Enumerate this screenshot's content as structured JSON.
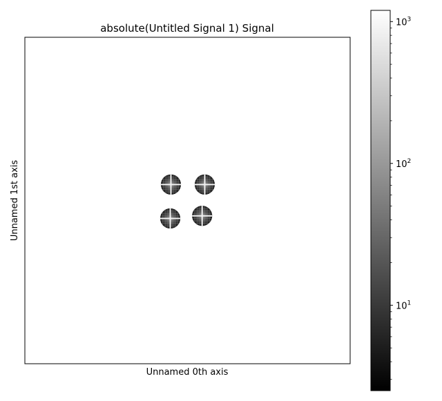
{
  "chart_data": {
    "type": "heatmap",
    "title": "absolute(Untitled Signal 1) Signal",
    "xlabel": "Unnamed 0th axis",
    "ylabel": "Unnamed 1st axis",
    "background_value": 0,
    "colormap": "gray",
    "colorbar": {
      "scale": "log",
      "range": [
        2.5,
        1200
      ],
      "major_ticks": [
        {
          "value": 1000,
          "base": "10",
          "exp": "3"
        },
        {
          "value": 100,
          "base": "10",
          "exp": "2"
        },
        {
          "value": 10,
          "base": "10",
          "exp": "1"
        }
      ],
      "minor_ticks": [
        3,
        4,
        5,
        6,
        7,
        8,
        9,
        20,
        30,
        40,
        50,
        60,
        70,
        80,
        90,
        200,
        300,
        400,
        500,
        600,
        700,
        800,
        900
      ]
    },
    "blobs": [
      {
        "label": "upper-left",
        "cx": 0.449,
        "cy": 0.451,
        "peak": 1000
      },
      {
        "label": "upper-right",
        "cx": 0.553,
        "cy": 0.451,
        "peak": 1000
      },
      {
        "label": "lower-left",
        "cx": 0.447,
        "cy": 0.555,
        "peak": 1000
      },
      {
        "label": "lower-right",
        "cx": 0.545,
        "cy": 0.547,
        "peak": 1000
      }
    ],
    "blob_radius": 0.031
  }
}
